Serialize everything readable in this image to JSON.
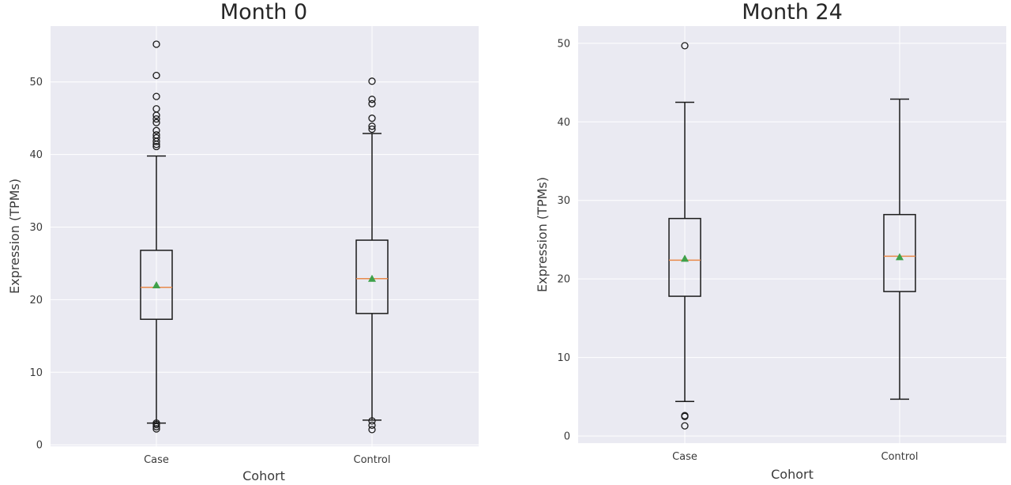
{
  "chart_data": [
    {
      "type": "box",
      "title": "Month 0",
      "xlabel": "Cohort",
      "ylabel": "Expression (TPMs)",
      "ylim": [
        -0.2,
        57.7
      ],
      "yticks": [
        0,
        10,
        20,
        30,
        40,
        50
      ],
      "categories": [
        "Case",
        "Control"
      ],
      "grid": true,
      "boxes": [
        {
          "category": "Case",
          "whisker_low": 3.0,
          "q1": 17.3,
          "median": 21.7,
          "q3": 26.8,
          "whisker_high": 39.8,
          "mean": 22.0,
          "fliers": [
            55.2,
            50.9,
            48.0,
            46.3,
            45.4,
            44.9,
            44.4,
            43.3,
            42.7,
            42.3,
            41.8,
            41.4,
            41.1,
            3.0,
            2.8,
            2.5,
            2.2
          ]
        },
        {
          "category": "Control",
          "whisker_low": 3.4,
          "q1": 18.1,
          "median": 22.9,
          "q3": 28.2,
          "whisker_high": 42.9,
          "mean": 22.9,
          "fliers": [
            50.1,
            47.6,
            47.0,
            45.0,
            43.9,
            43.5,
            3.3,
            2.7,
            2.1
          ]
        }
      ]
    },
    {
      "type": "box",
      "title": "Month 24",
      "xlabel": "Cohort",
      "ylabel": "Expression (TPMs)",
      "ylim": [
        -0.9,
        52.2
      ],
      "yticks": [
        0,
        10,
        20,
        30,
        40,
        50
      ],
      "categories": [
        "Case",
        "Control"
      ],
      "grid": true,
      "boxes": [
        {
          "category": "Case",
          "whisker_low": 4.4,
          "q1": 17.8,
          "median": 22.4,
          "q3": 27.7,
          "whisker_high": 42.5,
          "mean": 22.6,
          "fliers": [
            49.7,
            2.6,
            2.5,
            1.3
          ]
        },
        {
          "category": "Control",
          "whisker_low": 4.7,
          "q1": 18.4,
          "median": 22.9,
          "q3": 28.2,
          "whisker_high": 42.9,
          "mean": 22.8,
          "fliers": []
        }
      ]
    }
  ]
}
